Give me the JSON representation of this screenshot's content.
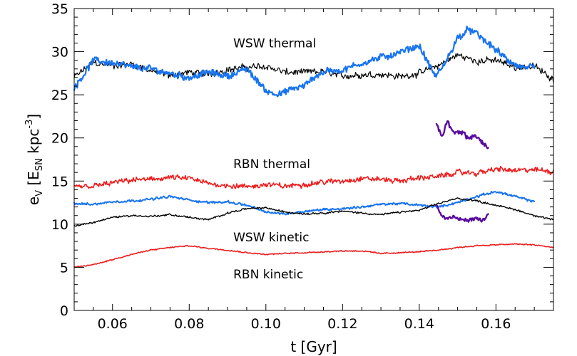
{
  "chart_data": {
    "type": "line",
    "title": "",
    "xlabel": "t [Gyr]",
    "ylabel": "e_V [E_SN kpc^-3]",
    "ylabel_parts": {
      "base": "e",
      "sub1": "V",
      "bracket_open": " [E",
      "sub2": "SN",
      "mid": " kpc",
      "sup": "-3",
      "bracket_close": "]"
    },
    "xlim": [
      0.05,
      0.175
    ],
    "ylim": [
      0,
      35
    ],
    "x_ticks": [
      0.06,
      0.08,
      0.1,
      0.12,
      0.14,
      0.16
    ],
    "x_tick_labels": [
      "0.06",
      "0.08",
      "0.10",
      "0.12",
      "0.14",
      "0.16"
    ],
    "y_ticks": [
      0,
      5,
      10,
      15,
      20,
      25,
      30,
      35
    ],
    "y_tick_labels": [
      "0",
      "5",
      "10",
      "15",
      "20",
      "25",
      "30",
      "35"
    ],
    "annotations": [
      {
        "text": "WSW thermal",
        "x": 0.0915,
        "y": 30.5
      },
      {
        "text": "RBN thermal",
        "x": 0.0915,
        "y": 16.5
      },
      {
        "text": "WSW kinetic",
        "x": 0.0915,
        "y": 8.0
      },
      {
        "text": "RBN kinetic",
        "x": 0.0915,
        "y": 3.7
      }
    ],
    "series": [
      {
        "name": "WSW thermal (black)",
        "color": "#000000",
        "width": 1.2,
        "noise": 0.45,
        "x": [
          0.05,
          0.055,
          0.06,
          0.065,
          0.07,
          0.075,
          0.08,
          0.085,
          0.09,
          0.095,
          0.1,
          0.105,
          0.11,
          0.115,
          0.12,
          0.125,
          0.13,
          0.135,
          0.14,
          0.145,
          0.15,
          0.155,
          0.16,
          0.165,
          0.17,
          0.175
        ],
        "y": [
          27.0,
          28.8,
          28.3,
          28.6,
          27.8,
          27.2,
          27.6,
          27.4,
          27.9,
          28.2,
          28.3,
          27.6,
          27.6,
          27.7,
          27.2,
          27.3,
          27.4,
          27.1,
          27.5,
          28.4,
          29.6,
          28.9,
          29.0,
          28.2,
          28.3,
          26.8
        ]
      },
      {
        "name": "WSW thermal (blue)",
        "color": "#1874f0",
        "width": 2.2,
        "noise": 0.45,
        "x": [
          0.05,
          0.055,
          0.06,
          0.065,
          0.07,
          0.075,
          0.08,
          0.085,
          0.09,
          0.095,
          0.1,
          0.101,
          0.104,
          0.107,
          0.11,
          0.113,
          0.116,
          0.12,
          0.125,
          0.13,
          0.135,
          0.14,
          0.144,
          0.146,
          0.15,
          0.153,
          0.156,
          0.16,
          0.163,
          0.166,
          0.17
        ],
        "y": [
          25.8,
          29.0,
          28.7,
          28.2,
          28.0,
          27.5,
          27.0,
          27.6,
          27.2,
          28.0,
          25.5,
          25.3,
          25.1,
          25.7,
          26.0,
          27.2,
          27.8,
          27.8,
          28.7,
          29.3,
          29.9,
          30.7,
          27.2,
          28.0,
          31.6,
          32.6,
          31.7,
          30.2,
          29.0,
          28.2,
          28.1
        ]
      },
      {
        "name": "RBN thermal",
        "color": "#ee1c1c",
        "width": 1.6,
        "noise": 0.35,
        "x": [
          0.05,
          0.055,
          0.06,
          0.065,
          0.07,
          0.075,
          0.08,
          0.085,
          0.09,
          0.095,
          0.1,
          0.105,
          0.11,
          0.115,
          0.12,
          0.125,
          0.13,
          0.135,
          0.14,
          0.145,
          0.15,
          0.155,
          0.16,
          0.165,
          0.17,
          0.175
        ],
        "y": [
          14.4,
          14.4,
          14.8,
          15.1,
          15.2,
          15.4,
          15.3,
          14.7,
          14.5,
          14.3,
          14.6,
          14.4,
          14.6,
          14.9,
          15.0,
          15.3,
          15.2,
          15.0,
          15.4,
          15.5,
          16.0,
          15.9,
          16.4,
          16.2,
          16.3,
          16.1
        ]
      },
      {
        "name": "WSW kinetic (blue)",
        "color": "#1874f0",
        "width": 2.0,
        "noise": 0.15,
        "x": [
          0.05,
          0.055,
          0.06,
          0.065,
          0.07,
          0.075,
          0.08,
          0.085,
          0.09,
          0.095,
          0.1,
          0.105,
          0.11,
          0.115,
          0.12,
          0.125,
          0.13,
          0.135,
          0.14,
          0.145,
          0.15,
          0.155,
          0.16,
          0.165,
          0.17
        ],
        "y": [
          12.4,
          12.3,
          12.6,
          12.7,
          12.9,
          13.2,
          12.8,
          12.5,
          12.6,
          12.2,
          11.4,
          11.2,
          11.5,
          11.7,
          11.8,
          12.0,
          12.3,
          12.4,
          12.2,
          12.0,
          12.5,
          13.2,
          13.8,
          13.2,
          12.6
        ]
      },
      {
        "name": "WSW kinetic (black)",
        "color": "#000000",
        "width": 1.4,
        "noise": 0.12,
        "x": [
          0.05,
          0.055,
          0.06,
          0.065,
          0.07,
          0.075,
          0.08,
          0.085,
          0.09,
          0.095,
          0.1,
          0.105,
          0.11,
          0.115,
          0.12,
          0.125,
          0.13,
          0.135,
          0.14,
          0.145,
          0.15,
          0.155,
          0.16,
          0.165,
          0.17,
          0.175
        ],
        "y": [
          9.8,
          10.2,
          10.8,
          11.0,
          10.9,
          11.1,
          10.8,
          10.5,
          11.3,
          11.8,
          11.9,
          11.4,
          11.2,
          11.3,
          11.5,
          11.3,
          11.1,
          11.4,
          11.6,
          12.4,
          13.0,
          12.7,
          12.2,
          11.7,
          11.0,
          10.5
        ]
      },
      {
        "name": "RBN kinetic",
        "color": "#ee1c1c",
        "width": 1.6,
        "noise": 0.08,
        "x": [
          0.05,
          0.055,
          0.06,
          0.065,
          0.07,
          0.075,
          0.08,
          0.085,
          0.09,
          0.095,
          0.1,
          0.105,
          0.11,
          0.115,
          0.12,
          0.125,
          0.13,
          0.135,
          0.14,
          0.145,
          0.15,
          0.155,
          0.16,
          0.165,
          0.17,
          0.175
        ],
        "y": [
          5.0,
          5.3,
          5.9,
          6.5,
          7.0,
          7.3,
          7.5,
          7.2,
          7.0,
          6.7,
          6.5,
          6.6,
          6.7,
          6.8,
          6.9,
          6.9,
          6.6,
          6.7,
          6.8,
          7.0,
          7.3,
          7.5,
          7.6,
          7.7,
          7.6,
          7.3
        ]
      },
      {
        "name": "short run thermal",
        "color": "#5a0aa0",
        "width": 2.4,
        "noise": 0.4,
        "x": [
          0.1445,
          0.146,
          0.1475,
          0.149,
          0.151,
          0.153,
          0.155,
          0.1565,
          0.158
        ],
        "y": [
          21.5,
          20.2,
          21.8,
          20.5,
          20.6,
          20.0,
          20.2,
          19.5,
          18.8
        ]
      },
      {
        "name": "short run kinetic",
        "color": "#5a0aa0",
        "width": 2.4,
        "noise": 0.25,
        "x": [
          0.1445,
          0.146,
          0.1475,
          0.149,
          0.151,
          0.153,
          0.155,
          0.1565,
          0.158
        ],
        "y": [
          12.1,
          10.9,
          10.6,
          10.8,
          10.5,
          10.5,
          10.6,
          10.4,
          11.2
        ]
      }
    ]
  }
}
